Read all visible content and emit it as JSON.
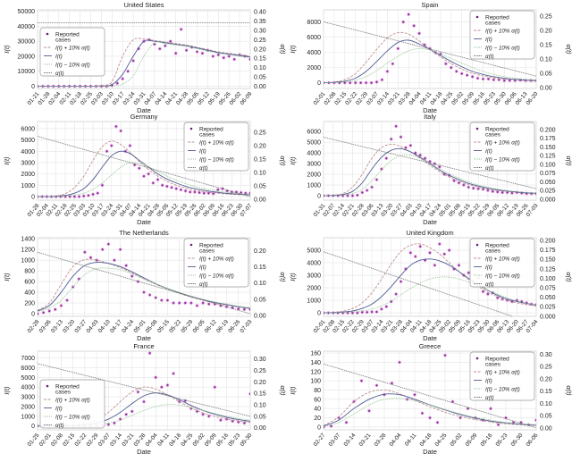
{
  "shared": {
    "xlabel": "Date",
    "ylabel": "I(t)",
    "y2label": "α(t)",
    "legend_labels": [
      "Reported cases",
      "I(t) + 10% α(t)",
      "I(t)",
      "I(t) − 10% α(t)",
      "α(t)"
    ],
    "colors": {
      "reported": "#6a1b7a",
      "reported_halo": "#e38ae3",
      "plus": "#c09090",
      "fit": "#4f5b92",
      "minus": "#8fc48f",
      "alpha": "#6f6f6f",
      "grid": "#e4e4e4"
    }
  },
  "chart_data": [
    {
      "type": "line",
      "title": "United States",
      "legend_position": "center-left",
      "xticks": [
        "01-21",
        "01-28",
        "02-04",
        "02-11",
        "02-18",
        "02-25",
        "03-03",
        "03-10",
        "03-17",
        "03-24",
        "03-31",
        "04-07",
        "04-14",
        "04-21",
        "04-28",
        "05-05",
        "05-12",
        "05-19",
        "05-26",
        "06-02",
        "06-09"
      ],
      "yticks": [
        0,
        10000,
        20000,
        30000,
        40000,
        50000
      ],
      "ylim": [
        -1500,
        51000
      ],
      "y2ticks": [
        "0.00",
        "0.05",
        "0.10",
        "0.15",
        "0.20",
        "0.25",
        "0.30",
        "0.35",
        "0.40"
      ],
      "y2lim": [
        -0.012,
        0.41
      ],
      "fit": [
        0,
        0,
        0,
        0,
        0,
        0,
        0,
        1000,
        8000,
        20000,
        30000,
        30000,
        29000,
        28000,
        27000,
        25500,
        24000,
        22500,
        21500,
        20500,
        19500
      ],
      "plus": [
        0,
        0,
        0,
        0,
        0,
        0,
        500,
        3000,
        20000,
        31000,
        31500,
        30500,
        29500,
        28500,
        27500,
        26000,
        24500,
        23000,
        22000,
        21000,
        20000
      ],
      "minus": [
        0,
        0,
        0,
        0,
        0,
        0,
        0,
        200,
        1500,
        7000,
        20000,
        29000,
        28500,
        27500,
        26500,
        25000,
        23500,
        22000,
        21000,
        20000,
        19000
      ],
      "alpha": [
        0.34,
        0.34
      ],
      "reported": [
        0,
        0,
        0,
        0,
        0,
        0,
        0,
        0,
        0,
        0,
        0,
        0,
        0,
        0,
        500,
        2000,
        5000,
        10000,
        17000,
        25000,
        30000,
        31000,
        28000,
        25000,
        27000,
        30000,
        22000,
        38000,
        24000,
        26000,
        23000,
        22000,
        24000,
        20000,
        21000,
        19000,
        20000,
        18000,
        21000,
        20000,
        18000
      ]
    },
    {
      "type": "line",
      "title": "Spain",
      "legend_position": "top-right",
      "xticks": [
        "02-01",
        "02-08",
        "02-15",
        "02-22",
        "02-29",
        "03-07",
        "03-14",
        "03-21",
        "03-28",
        "04-04",
        "04-11",
        "04-18",
        "04-25",
        "05-02",
        "05-09",
        "05-16",
        "05-23",
        "05-30",
        "06-06",
        "06-13",
        "06-20"
      ],
      "yticks": [
        0,
        2000,
        4000,
        6000,
        8000
      ],
      "ylim": [
        -750,
        9600
      ],
      "y2ticks": [
        "0.00",
        "0.05",
        "0.10",
        "0.15",
        "0.20",
        "0.25"
      ],
      "y2lim": [
        -0.003,
        0.272
      ],
      "fit": [
        0,
        50,
        200,
        600,
        1500,
        2800,
        4200,
        5300,
        5600,
        5100,
        4400,
        3600,
        2800,
        2100,
        1500,
        1100,
        800,
        600,
        450,
        350,
        300
      ],
      "plus": [
        0,
        100,
        400,
        1200,
        2700,
        4400,
        5900,
        6600,
        6400,
        5500,
        4400,
        3400,
        2500,
        1800,
        1250,
        900,
        650,
        500,
        400,
        300,
        250
      ],
      "minus": [
        0,
        30,
        100,
        300,
        800,
        1600,
        2600,
        3500,
        4200,
        4500,
        4300,
        3800,
        3200,
        2600,
        2000,
        1500,
        1100,
        800,
        600,
        450,
        350
      ],
      "alpha": [
        0.23,
        0.04
      ],
      "reported": [
        0,
        0,
        0,
        0,
        0,
        0,
        0,
        0,
        0,
        0,
        100,
        400,
        1500,
        2500,
        4500,
        8000,
        9000,
        7500,
        6500,
        5000,
        4500,
        4000,
        3800,
        2500,
        2000,
        1500,
        1200,
        1000,
        800,
        600,
        500,
        500,
        400,
        400,
        300,
        300,
        300,
        350,
        300,
        300,
        300
      ]
    },
    {
      "type": "line",
      "title": "Germany",
      "legend_position": "top-right",
      "xticks": [
        "01-28",
        "02-04",
        "02-11",
        "02-18",
        "02-25",
        "03-03",
        "03-10",
        "03-17",
        "03-24",
        "03-31",
        "04-07",
        "04-14",
        "04-21",
        "04-28",
        "05-05",
        "05-12",
        "05-19",
        "05-26",
        "06-02",
        "06-09",
        "06-16",
        "06-23",
        "06-30",
        "07-07"
      ],
      "yticks": [
        0,
        1000,
        2000,
        3000,
        4000,
        5000,
        6000
      ],
      "ylim": [
        -320,
        6630
      ],
      "y2ticks": [
        "0.00",
        "0.05",
        "0.10",
        "0.15",
        "0.20",
        "0.25"
      ],
      "y2lim": [
        -0.003,
        0.29
      ],
      "fit": [
        0,
        0,
        20,
        100,
        300,
        700,
        1500,
        2600,
        3600,
        4000,
        3800,
        3200,
        2600,
        2000,
        1550,
        1200,
        900,
        700,
        550,
        420,
        320,
        250,
        200,
        150
      ],
      "plus": [
        0,
        0,
        50,
        250,
        800,
        1800,
        3200,
        4400,
        4900,
        4600,
        3900,
        3100,
        2400,
        1800,
        1350,
        1000,
        750,
        560,
        430,
        330,
        260,
        200,
        160,
        120
      ],
      "minus": [
        0,
        0,
        10,
        40,
        120,
        300,
        650,
        1200,
        1900,
        2600,
        3000,
        2950,
        2650,
        2200,
        1800,
        1450,
        1150,
        900,
        700,
        550,
        420,
        330,
        260,
        200
      ],
      "alpha": [
        0.235,
        0.01
      ],
      "reported": [
        0,
        0,
        0,
        0,
        0,
        0,
        0,
        0,
        0,
        0,
        50,
        100,
        200,
        300,
        1000,
        4000,
        4500,
        6200,
        5800,
        4000,
        4500,
        2800,
        2500,
        1800,
        2000,
        1200,
        1500,
        1000,
        900,
        800,
        700,
        600,
        500,
        400,
        400,
        350,
        300,
        300,
        250,
        600,
        700,
        500,
        400,
        400,
        350,
        300,
        300
      ]
    },
    {
      "type": "line",
      "title": "Italy",
      "legend_position": "top-right",
      "xticks": [
        "01-31",
        "02-07",
        "02-14",
        "02-21",
        "02-28",
        "03-06",
        "03-13",
        "03-20",
        "03-27",
        "04-03",
        "04-10",
        "04-17",
        "04-24",
        "05-01",
        "05-08",
        "05-15",
        "05-22",
        "05-29",
        "06-05",
        "06-12",
        "06-19",
        "06-26",
        "07-03"
      ],
      "yticks": [
        0,
        1000,
        2000,
        3000,
        4000,
        5000,
        6000
      ],
      "ylim": [
        -420,
        6940
      ],
      "y2ticks": [
        "0.000",
        "0.025",
        "0.050",
        "0.075",
        "0.100",
        "0.125",
        "0.150",
        "0.175",
        "0.200"
      ],
      "y2lim": [
        -0.003,
        0.223
      ],
      "fit": [
        0,
        20,
        100,
        400,
        1200,
        2500,
        3600,
        4250,
        4400,
        4100,
        3600,
        3000,
        2400,
        1900,
        1500,
        1150,
        900,
        700,
        550,
        430,
        340,
        270,
        220
      ],
      "plus": [
        0,
        40,
        200,
        800,
        2000,
        3500,
        4500,
        4800,
        4600,
        4100,
        3500,
        2850,
        2250,
        1750,
        1350,
        1050,
        800,
        620,
        490,
        390,
        310,
        250,
        200
      ],
      "minus": [
        0,
        10,
        50,
        200,
        600,
        1400,
        2400,
        3300,
        3750,
        3800,
        3500,
        3050,
        2550,
        2050,
        1650,
        1300,
        1000,
        780,
        610,
        480,
        380,
        300,
        240
      ],
      "alpha": [
        0.178,
        0.03
      ],
      "reported": [
        0,
        0,
        0,
        0,
        0,
        0,
        0,
        50,
        300,
        500,
        800,
        1500,
        2500,
        3500,
        5300,
        6500,
        5500,
        4500,
        4700,
        4000,
        3800,
        3500,
        3200,
        3000,
        2700,
        2000,
        1900,
        1400,
        1200,
        1000,
        800,
        700,
        650,
        600,
        500,
        400,
        350,
        300,
        300,
        250,
        300,
        250,
        200,
        200,
        200
      ]
    },
    {
      "type": "line",
      "title": "The Netherlands",
      "legend_position": "top-right",
      "xticks": [
        "02-28",
        "03-06",
        "03-13",
        "03-20",
        "03-27",
        "04-03",
        "04-10",
        "04-17",
        "04-24",
        "05-01",
        "05-08",
        "05-15",
        "05-22",
        "05-29",
        "06-05",
        "06-12",
        "06-19",
        "06-26",
        "07-03"
      ],
      "yticks": [
        0,
        200,
        400,
        600,
        800,
        1000,
        1200,
        1400
      ],
      "ylim": [
        -50,
        1420
      ],
      "y2ticks": [
        "0.00",
        "0.05",
        "0.10",
        "0.15",
        "0.20"
      ],
      "y2lim": [
        -0.003,
        0.24
      ],
      "fit": [
        50,
        150,
        400,
        700,
        900,
        960,
        940,
        880,
        780,
        670,
        560,
        470,
        390,
        320,
        260,
        210,
        170,
        130,
        100
      ],
      "plus": [
        60,
        200,
        550,
        880,
        1010,
        1000,
        940,
        860,
        760,
        650,
        550,
        460,
        380,
        310,
        250,
        200,
        160,
        125,
        95
      ],
      "minus": [
        40,
        100,
        250,
        500,
        730,
        840,
        850,
        820,
        740,
        650,
        560,
        470,
        400,
        330,
        270,
        220,
        180,
        140,
        110
      ],
      "alpha": [
        0.195,
        0.005
      ],
      "reported": [
        0,
        20,
        50,
        80,
        150,
        250,
        500,
        650,
        1150,
        1050,
        1000,
        1200,
        1300,
        1000,
        1200,
        900,
        700,
        600,
        400,
        350,
        300,
        250,
        250,
        200,
        200,
        200,
        200,
        150,
        200,
        180,
        180,
        150,
        130,
        110,
        90,
        80,
        80
      ]
    },
    {
      "type": "line",
      "title": "United Kingdom",
      "legend_position": "top-right",
      "xticks": [
        "02-01",
        "02-08",
        "02-15",
        "02-22",
        "02-29",
        "03-07",
        "03-14",
        "03-21",
        "03-28",
        "04-04",
        "04-11",
        "04-18",
        "04-25",
        "05-02",
        "05-09",
        "05-16",
        "05-23",
        "05-30",
        "06-06",
        "06-13",
        "06-20",
        "06-27",
        "07-04"
      ],
      "yticks": [
        0,
        1000,
        2000,
        3000,
        4000,
        5000
      ],
      "ylim": [
        -280,
        6000
      ],
      "y2ticks": [
        "0.000",
        "0.025",
        "0.050",
        "0.075",
        "0.100",
        "0.125",
        "0.150",
        "0.175",
        "0.200"
      ],
      "y2lim": [
        -0.0005,
        0.207
      ],
      "fit": [
        0,
        20,
        60,
        150,
        350,
        700,
        1300,
        2100,
        3000,
        3800,
        4200,
        4300,
        4150,
        3800,
        3300,
        2750,
        2250,
        1800,
        1400,
        1100,
        900,
        750,
        620
      ],
      "plus": [
        0,
        40,
        130,
        350,
        800,
        1600,
        2700,
        3900,
        4900,
        5400,
        5500,
        5200,
        4700,
        4000,
        3300,
        2650,
        2100,
        1650,
        1300,
        1000,
        800,
        650,
        550
      ],
      "minus": [
        0,
        10,
        30,
        70,
        150,
        300,
        550,
        950,
        1450,
        1950,
        2400,
        2700,
        2850,
        2850,
        2700,
        2450,
        2150,
        1800,
        1500,
        1200,
        950,
        780,
        640
      ],
      "alpha": [
        0.17,
        -0.022
      ],
      "reported": [
        0,
        0,
        0,
        0,
        0,
        0,
        0,
        0,
        50,
        50,
        80,
        80,
        300,
        500,
        900,
        1500,
        2500,
        3500,
        4800,
        4500,
        5300,
        4200,
        4800,
        3800,
        5500,
        4700,
        5000,
        3500,
        3800,
        3000,
        3200,
        2500,
        2800,
        1700,
        1500,
        1600,
        1200,
        1100,
        1000,
        900,
        1000,
        900,
        800,
        700,
        650
      ]
    },
    {
      "type": "line",
      "title": "France",
      "legend_position": "center-left",
      "xticks": [
        "01-25",
        "02-01",
        "02-08",
        "02-15",
        "02-22",
        "02-29",
        "03-07",
        "03-14",
        "03-21",
        "03-28",
        "04-04",
        "04-11",
        "04-18",
        "04-25",
        "05-02",
        "05-09",
        "05-16",
        "05-23",
        "05-30"
      ],
      "yticks": [
        0,
        1000,
        2000,
        3000,
        4000,
        5000,
        6000,
        7000
      ],
      "ylim": [
        -400,
        7700
      ],
      "y2ticks": [
        "0.00",
        "0.05",
        "0.10",
        "0.15",
        "0.20",
        "0.25",
        "0.30"
      ],
      "y2lim": [
        -0.009,
        0.334
      ],
      "fit": [
        0,
        0,
        10,
        30,
        100,
        300,
        700,
        1400,
        2300,
        3100,
        3400,
        3200,
        2700,
        2100,
        1600,
        1200,
        900,
        650,
        480
      ],
      "plus": [
        0,
        0,
        20,
        80,
        250,
        650,
        1400,
        2500,
        3500,
        4000,
        3800,
        3200,
        2500,
        1850,
        1350,
        980,
        710,
        520,
        380
      ],
      "minus": [
        0,
        0,
        5,
        15,
        50,
        130,
        300,
        600,
        1100,
        1600,
        2000,
        2200,
        2150,
        1900,
        1600,
        1300,
        1000,
        780,
        600
      ],
      "alpha": [
        0.28,
        0.05
      ],
      "reported": [
        0,
        0,
        0,
        0,
        0,
        0,
        0,
        0,
        0,
        0,
        0,
        50,
        150,
        300,
        700,
        1200,
        1500,
        3500,
        2500,
        7500,
        5000,
        4000,
        4200,
        5400,
        2500,
        2600,
        1800,
        1500,
        1200,
        1000,
        4000,
        600,
        700,
        500,
        400,
        300,
        3300
      ]
    },
    {
      "type": "line",
      "title": "Greece",
      "legend_position": "top-right",
      "xticks": [
        "02-27",
        "03-07",
        "03-14",
        "03-21",
        "03-28",
        "04-04",
        "04-11",
        "04-18",
        "04-25",
        "05-02",
        "05-09",
        "05-16",
        "05-23",
        "05-30",
        "06-06"
      ],
      "yticks": [
        0,
        20,
        40,
        60,
        80,
        100,
        120,
        140,
        160
      ],
      "ylim": [
        -6,
        164
      ],
      "y2ticks": [
        "0.00",
        "0.05",
        "0.10",
        "0.15",
        "0.20",
        "0.25",
        "0.30"
      ],
      "y2lim": [
        -0.008,
        0.312
      ],
      "fit": [
        2,
        15,
        40,
        60,
        71,
        70,
        60,
        48,
        37,
        27,
        19,
        13,
        9,
        6,
        4
      ],
      "plus": [
        3,
        22,
        55,
        75,
        80,
        72,
        58,
        44,
        32,
        23,
        16,
        11,
        7,
        5,
        3
      ],
      "minus": [
        1,
        10,
        28,
        48,
        60,
        62,
        57,
        48,
        38,
        29,
        21,
        15,
        10,
        7,
        5
      ],
      "alpha": [
        0.26,
        0.0
      ],
      "reported": [
        0,
        2,
        20,
        10,
        55,
        100,
        35,
        90,
        70,
        95,
        140,
        60,
        70,
        30,
        20,
        10,
        155,
        55,
        20,
        40,
        20,
        15,
        40,
        5,
        20,
        10,
        10,
        5,
        15
      ]
    }
  ]
}
